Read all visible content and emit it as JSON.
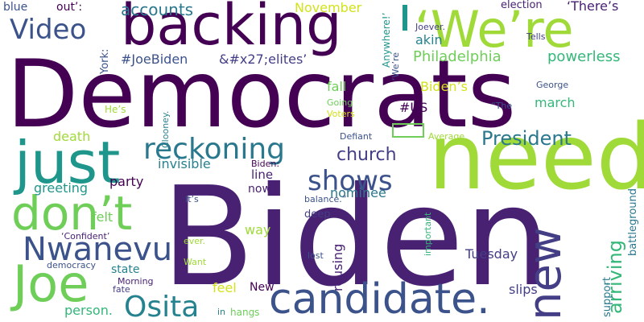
{
  "cloud": {
    "words": [
      {
        "text": "Democrats",
        "color": "#440154"
      },
      {
        "text": "Biden",
        "color": "#482173"
      },
      {
        "text": "need",
        "color": "#a0da39"
      },
      {
        "text": "backing",
        "color": "#440154"
      },
      {
        "text": "‘We’re",
        "color": "#a0da39"
      },
      {
        "text": "just",
        "color": "#1f968b"
      },
      {
        "text": "don’t",
        "color": "#6ece58"
      },
      {
        "text": "candidate.",
        "color": "#3b528b"
      },
      {
        "text": "Joe",
        "color": "#6ece58"
      },
      {
        "text": "Nwanevu",
        "color": "#3b528b"
      },
      {
        "text": "new",
        "color": "#433e85"
      },
      {
        "text": "reckoning",
        "color": "#2a788e"
      },
      {
        "text": "Osita",
        "color": "#26828e"
      },
      {
        "text": "Video",
        "color": "#3b528b"
      },
      {
        "text": "shows",
        "color": "#3b528b"
      },
      {
        "text": "President",
        "color": "#2a788e"
      },
      {
        "text": "church",
        "color": "#433e85"
      },
      {
        "text": "arriving",
        "color": "#35b779"
      },
      {
        "text": "accounts",
        "color": "#2a788e"
      },
      {
        "text": "Philadelphia",
        "color": "#6ece58"
      },
      {
        "text": "powerless",
        "color": "#35b779"
      },
      {
        "text": "#JoeBiden",
        "color": "#3b528b"
      },
      {
        "text": "&#x27;elites’",
        "color": "#433e85"
      },
      {
        "text": "‘There’s",
        "color": "#482173"
      },
      {
        "text": "November",
        "color": "#d2e21b"
      },
      {
        "text": "election",
        "color": "#482173"
      },
      {
        "text": "blue",
        "color": "#3b528b"
      },
      {
        "text": "out’:",
        "color": "#440154"
      },
      {
        "text": "York:",
        "color": "#3b528b"
      },
      {
        "text": "akin",
        "color": "#26828e"
      },
      {
        "text": "Joever.",
        "color": "#433e85"
      },
      {
        "text": "Tells",
        "color": "#433e85"
      },
      {
        "text": "Anywhere!’",
        "color": "#1f968b"
      },
      {
        "text": "‘We’re",
        "color": "#3b528b"
      },
      {
        "text": "Biden’s",
        "color": "#d2e21b"
      },
      {
        "text": "march",
        "color": "#35b779"
      },
      {
        "text": "fall",
        "color": "#6ece58"
      },
      {
        "text": "#US",
        "color": "#440154"
      },
      {
        "text": "George",
        "color": "#3b528b"
      },
      {
        "text": "Going",
        "color": "#6ece58"
      },
      {
        "text": "Voters",
        "color": "#d2e21b"
      },
      {
        "text": "“The",
        "color": "#3b528b"
      },
      {
        "text": "He’s",
        "color": "#a0da39"
      },
      {
        "text": "Clooney.",
        "color": "#26828e"
      },
      {
        "text": "death",
        "color": "#a0da39"
      },
      {
        "text": "invisible",
        "color": "#26828e"
      },
      {
        "text": "Defiant",
        "color": "#3b528b"
      },
      {
        "text": "Average",
        "color": "#a0da39"
      },
      {
        "text": "nominee",
        "color": "#2a788e"
      },
      {
        "text": "Biden:",
        "color": "#440154"
      },
      {
        "text": "line",
        "color": "#482173"
      },
      {
        "text": "now’",
        "color": "#482173"
      },
      {
        "text": "greeting",
        "color": "#1f968b"
      },
      {
        "text": "party",
        "color": "#440154"
      },
      {
        "text": "battleground",
        "color": "#2a788e"
      },
      {
        "text": "It’s",
        "color": "#3b528b"
      },
      {
        "text": "balance.”",
        "color": "#3b528b"
      },
      {
        "text": "felt",
        "color": "#6ece58"
      },
      {
        "text": "way",
        "color": "#a0da39"
      },
      {
        "text": "deep",
        "color": "#433e85"
      },
      {
        "text": "‘Confident’",
        "color": "#482173"
      },
      {
        "text": "ever.",
        "color": "#a0da39"
      },
      {
        "text": "important",
        "color": "#35b779"
      },
      {
        "text": "rousing",
        "color": "#482173"
      },
      {
        "text": "state",
        "color": "#26828e"
      },
      {
        "text": "Tuesday",
        "color": "#433e85"
      },
      {
        "text": "democracy",
        "color": "#3b528b"
      },
      {
        "text": "Want",
        "color": "#a0da39"
      },
      {
        "text": "lost",
        "color": "#3b528b"
      },
      {
        "text": "support",
        "color": "#2a788e"
      },
      {
        "text": "Morning",
        "color": "#482173"
      },
      {
        "text": "fate",
        "color": "#433e85"
      },
      {
        "text": "feel",
        "color": "#d2e21b"
      },
      {
        "text": "New",
        "color": "#440154"
      },
      {
        "text": "slips",
        "color": "#433e85"
      },
      {
        "text": "person.",
        "color": "#35b779"
      },
      {
        "text": "hangs",
        "color": "#6ece58"
      },
      {
        "text": "in",
        "color": "#26828e"
      }
    ]
  }
}
